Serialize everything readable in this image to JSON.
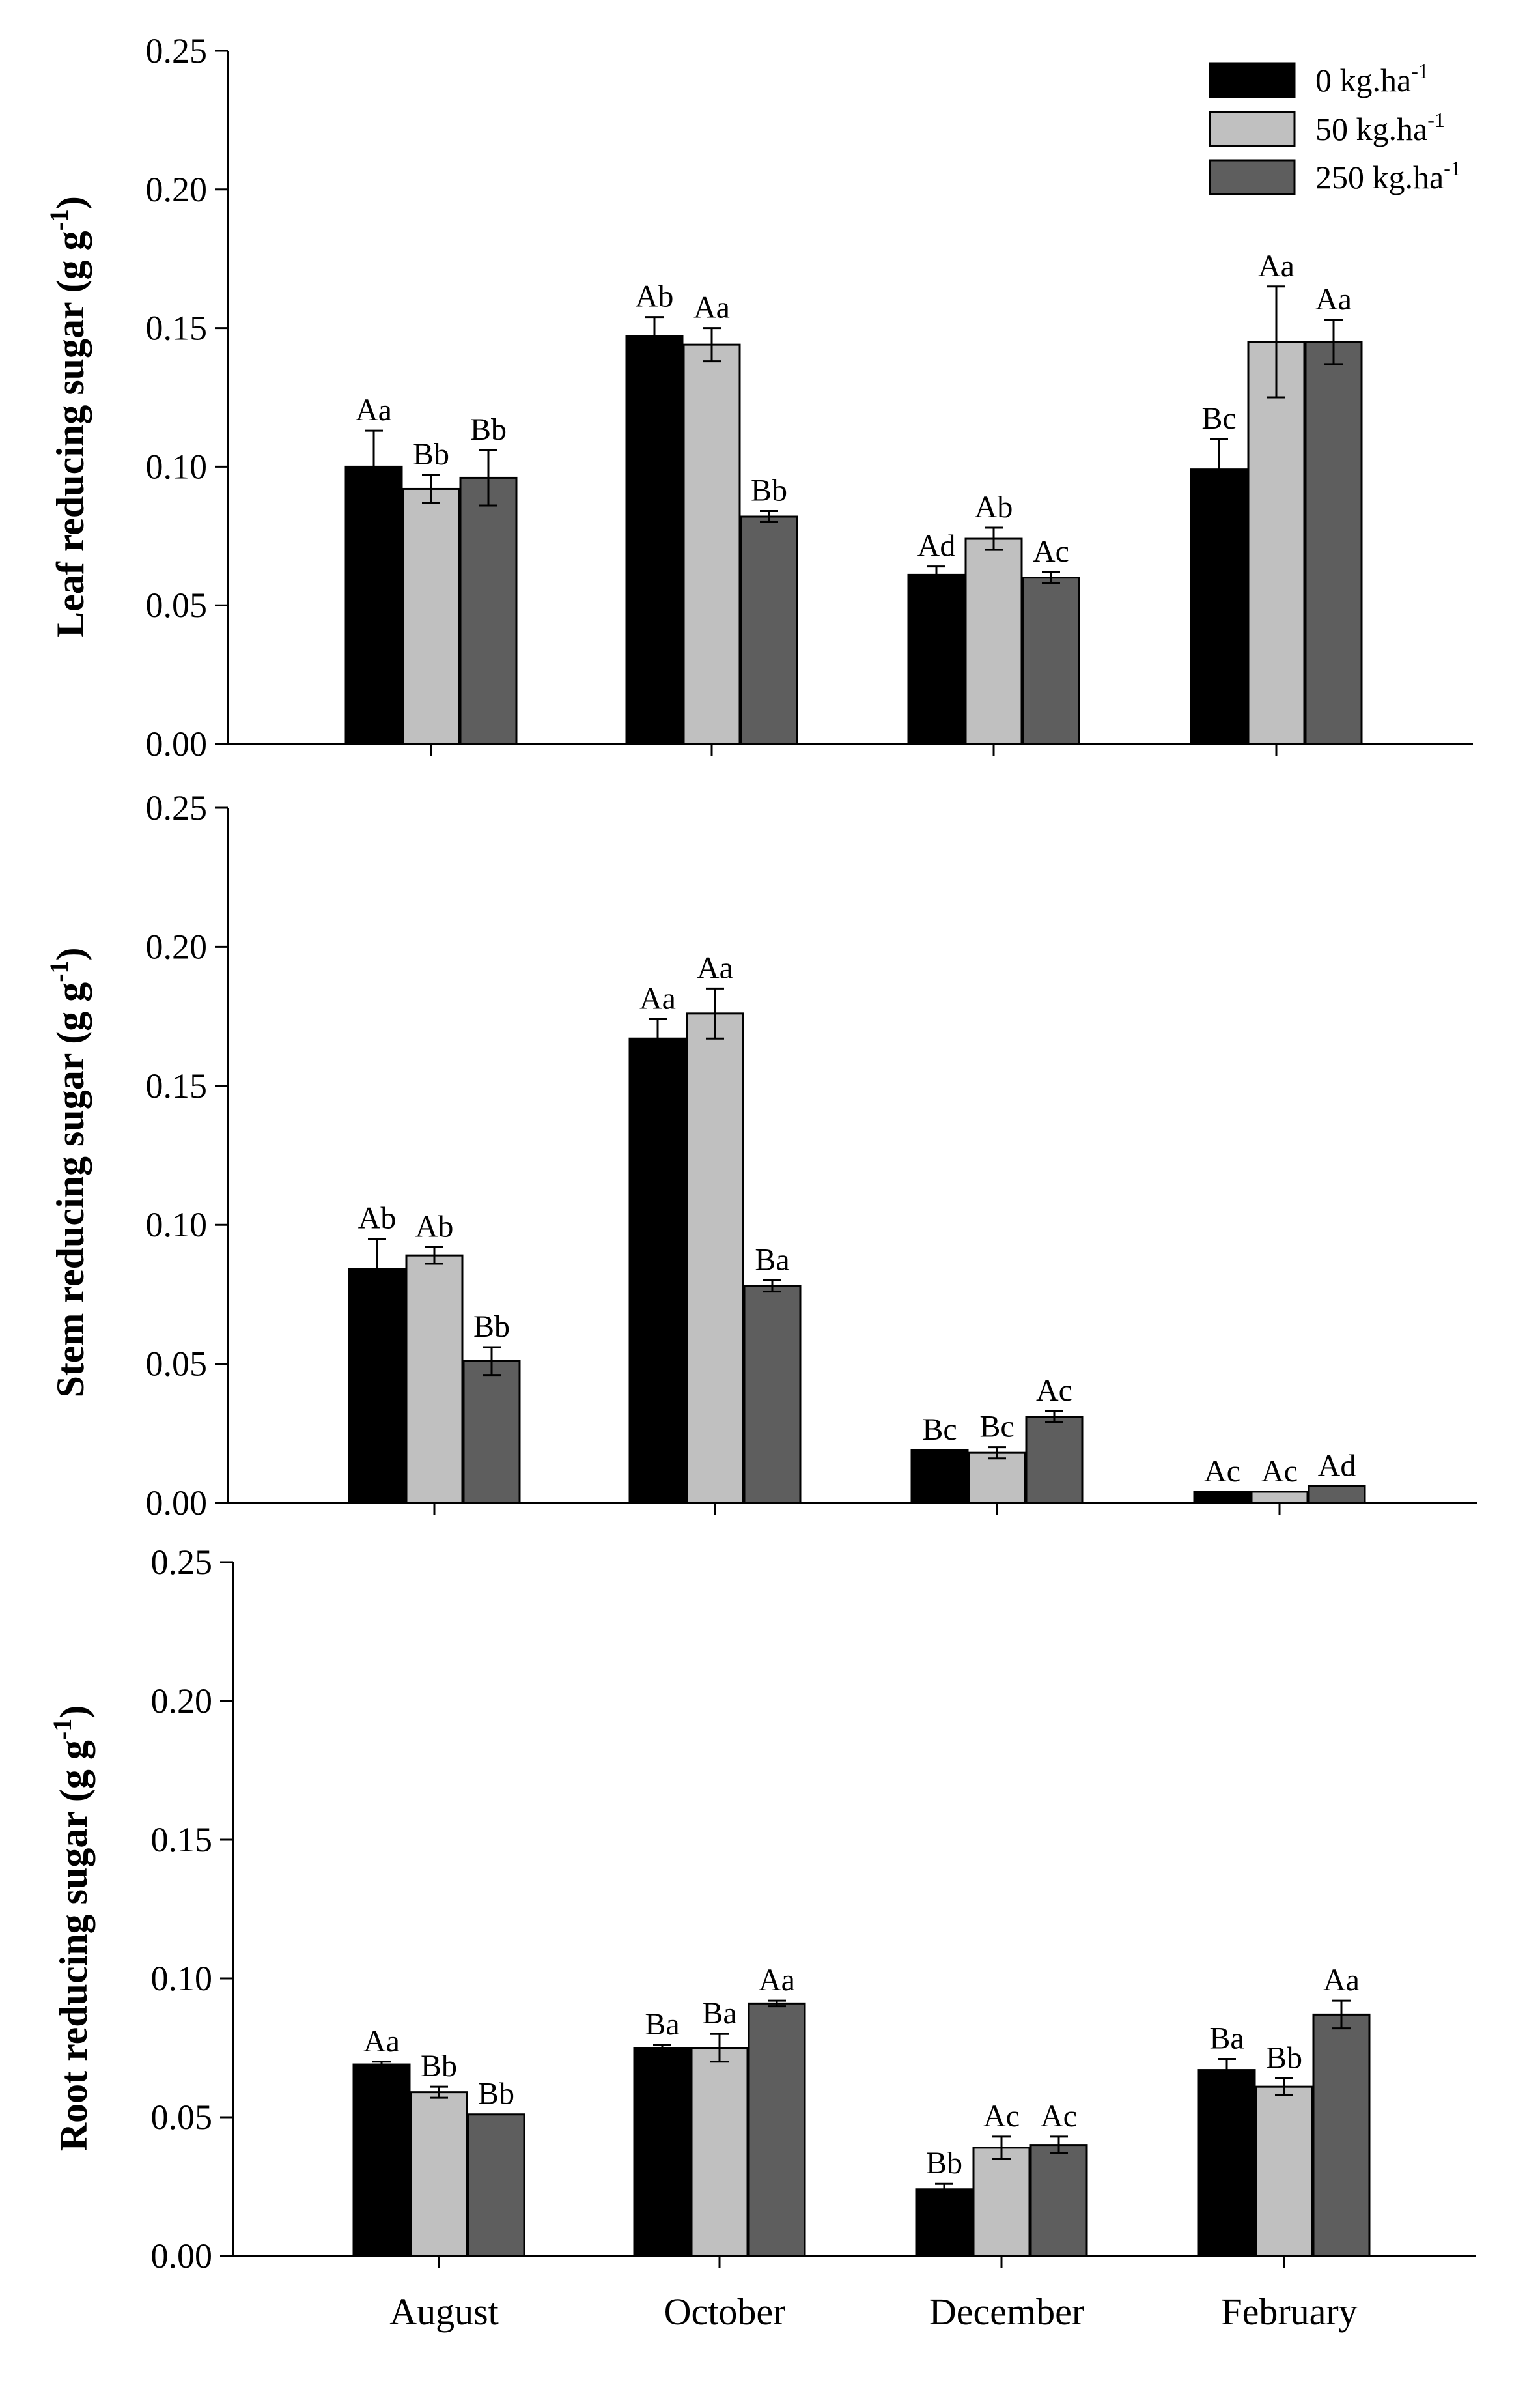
{
  "chart_data": {
    "type": "bar",
    "categories": [
      "August",
      "October",
      "December",
      "February"
    ],
    "legend": {
      "placement": "top-right",
      "entries": [
        {
          "label_main": "0 kg.ha",
          "label_sup": "-1",
          "color": "#000000"
        },
        {
          "label_main": "50 kg.ha",
          "label_sup": "-1",
          "color": "#c0c0c0"
        },
        {
          "label_main": "250 kg.ha",
          "label_sup": "-1",
          "color": "#5e5e5e"
        }
      ]
    },
    "series_colors": [
      "#000000",
      "#c0c0c0",
      "#5e5e5e"
    ],
    "ylim": [
      0,
      0.25
    ],
    "yticks": [
      "0.00",
      "0.05",
      "0.10",
      "0.15",
      "0.20",
      "0.25"
    ],
    "panels": [
      {
        "ylabel_main": "Leaf reducing sugar (g g",
        "ylabel_sup": "-1",
        "ylabel_close": ")",
        "series": [
          {
            "name": "0 kg.ha-1",
            "values": [
              0.1,
              0.147,
              0.061,
              0.099
            ],
            "errors": [
              0.013,
              0.007,
              0.003,
              0.011
            ],
            "labels": [
              "Aa",
              "Ab",
              "Ad",
              "Bc"
            ]
          },
          {
            "name": "50 kg.ha-1",
            "values": [
              0.092,
              0.144,
              0.074,
              0.145
            ],
            "errors": [
              0.005,
              0.006,
              0.004,
              0.02
            ],
            "labels": [
              "Bb",
              "Aa",
              "Ab",
              "Aa"
            ]
          },
          {
            "name": "250 kg.ha-1",
            "values": [
              0.096,
              0.082,
              0.06,
              0.145
            ],
            "errors": [
              0.01,
              0.002,
              0.002,
              0.008
            ],
            "labels": [
              "Bb",
              "Bb",
              "Ac",
              "Aa"
            ]
          }
        ]
      },
      {
        "ylabel_main": "Stem reducing sugar (g g",
        "ylabel_sup": "-1",
        "ylabel_close": ")",
        "series": [
          {
            "name": "0 kg.ha-1",
            "values": [
              0.084,
              0.167,
              0.019,
              0.004
            ],
            "errors": [
              0.011,
              0.007,
              0.0,
              0.0
            ],
            "labels": [
              "Ab",
              "Aa",
              "Bc",
              "Ac"
            ]
          },
          {
            "name": "50 kg.ha-1",
            "values": [
              0.089,
              0.176,
              0.018,
              0.004
            ],
            "errors": [
              0.003,
              0.009,
              0.002,
              0.0
            ],
            "labels": [
              "Ab",
              "Aa",
              "Bc",
              "Ac"
            ]
          },
          {
            "name": "250 kg.ha-1",
            "values": [
              0.051,
              0.078,
              0.031,
              0.006
            ],
            "errors": [
              0.005,
              0.002,
              0.002,
              0.0
            ],
            "labels": [
              "Bb",
              "Ba",
              "Ac",
              "Ad"
            ]
          }
        ]
      },
      {
        "ylabel_main": "Root reducing sugar (g g",
        "ylabel_sup": "-1",
        "ylabel_close": ")",
        "series": [
          {
            "name": "0 kg.ha-1",
            "values": [
              0.069,
              0.075,
              0.024,
              0.067
            ],
            "errors": [
              0.001,
              0.001,
              0.002,
              0.004
            ],
            "labels": [
              "Aa",
              "Ba",
              "Bb",
              "Ba"
            ]
          },
          {
            "name": "50 kg.ha-1",
            "values": [
              0.059,
              0.075,
              0.039,
              0.061
            ],
            "errors": [
              0.002,
              0.005,
              0.004,
              0.003
            ],
            "labels": [
              "Bb",
              "Ba",
              "Ac",
              "Bb"
            ]
          },
          {
            "name": "250 kg.ha-1",
            "values": [
              0.051,
              0.091,
              0.04,
              0.087
            ],
            "errors": [
              0.0,
              0.001,
              0.003,
              0.005
            ],
            "labels": [
              "Bb",
              "Aa",
              "Ac",
              "Aa"
            ]
          }
        ]
      }
    ]
  }
}
